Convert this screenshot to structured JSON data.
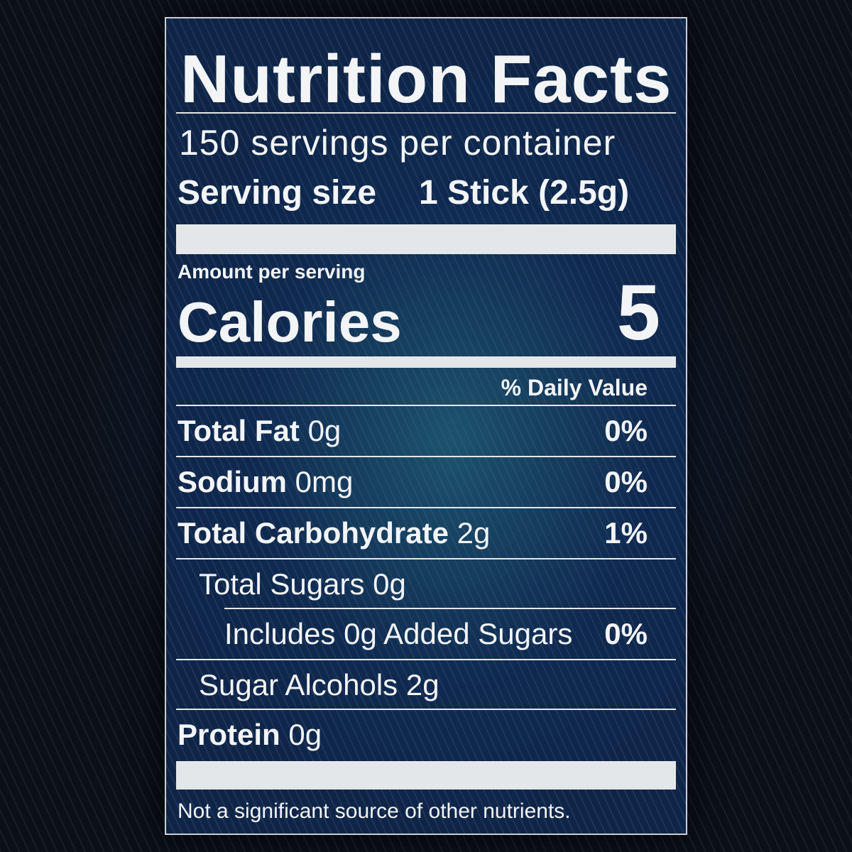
{
  "label": {
    "title": "Nutrition Facts",
    "servings_per_container": "150 servings per container",
    "serving_size_label": "Serving size",
    "serving_size_value": "1 Stick (2.5g)",
    "amount_per_serving": "Amount per serving",
    "calories_label": "Calories",
    "calories_value": "5",
    "daily_value_header": "% Daily Value",
    "footnote": "Not a significant source of other nutrients."
  },
  "nutrients": [
    {
      "name": "Total Fat",
      "amount": "0g",
      "dv": "0%"
    },
    {
      "name": "Sodium",
      "amount": "0mg",
      "dv": "0%"
    },
    {
      "name": "Total Carbohydrate",
      "amount": "2g",
      "dv": "1%"
    },
    {
      "text": "Total Sugars 0g"
    },
    {
      "text": "Includes 0g Added Sugars",
      "dv": "0%"
    },
    {
      "text": "Sugar Alcohols 2g"
    },
    {
      "name": "Protein",
      "amount": "0g"
    }
  ],
  "colors": {
    "panel_background": "#0e2548",
    "page_background": "#0b0f17",
    "text": "#f2f4f6",
    "rule": "#e4e7ea"
  }
}
